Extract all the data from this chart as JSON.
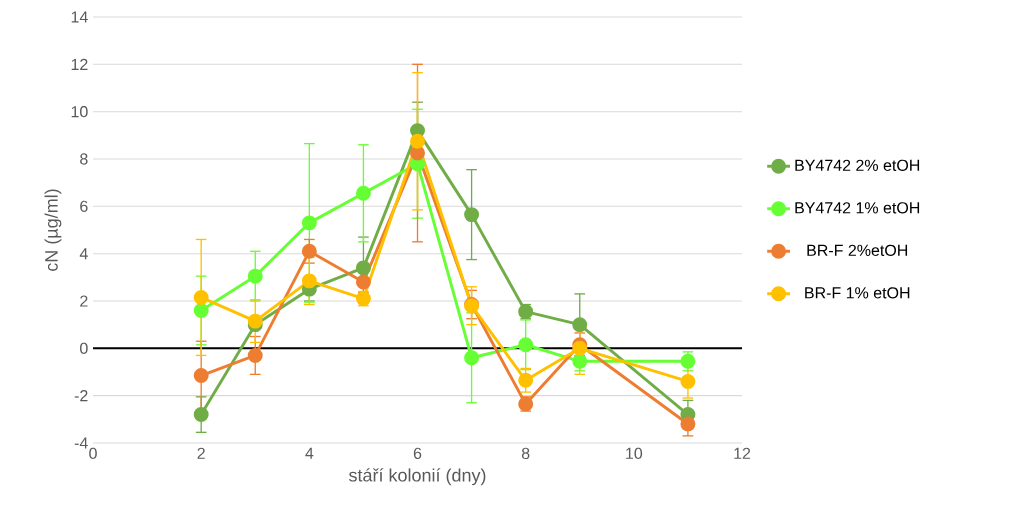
{
  "chart_data": {
    "type": "line",
    "xlabel": "stáří kolonií (dny)",
    "ylabel": "cN (µg/ml)",
    "x": [
      2,
      3,
      4,
      5,
      6,
      7,
      8,
      9,
      11
    ],
    "series": [
      {
        "name": "BY4742 2% etOH",
        "color": "#70ad47",
        "values": [
          -2.8,
          1.0,
          2.5,
          3.4,
          9.2,
          5.65,
          1.55,
          1.0,
          -2.8
        ],
        "errors": [
          0.75,
          null,
          0.5,
          1.3,
          1.2,
          1.9,
          0.3,
          1.3,
          0.6
        ]
      },
      {
        "name": "BY4742 1% etOH",
        "color": "#66ff33",
        "values": [
          1.6,
          3.05,
          5.3,
          6.55,
          7.8,
          -0.4,
          0.15,
          -0.55,
          -0.55
        ],
        "errors": [
          1.45,
          1.05,
          3.35,
          2.05,
          2.3,
          1.9,
          1.05,
          0.4,
          0.4
        ]
      },
      {
        "name": "BR-F 2%etOH",
        "color": "#ed7d31",
        "values": [
          -1.15,
          -0.3,
          4.1,
          2.8,
          8.25,
          1.85,
          -2.35,
          0.15,
          -3.2
        ],
        "errors": [
          1.45,
          0.8,
          0.5,
          0.45,
          3.75,
          0.6,
          0.3,
          0.5,
          0.5
        ]
      },
      {
        "name": "BR-F 1% etOH",
        "color": "#ffc000",
        "values": [
          2.15,
          1.15,
          2.85,
          2.1,
          8.75,
          1.8,
          -1.35,
          0.0,
          -1.4
        ],
        "errors": [
          2.45,
          0.9,
          1.0,
          0.3,
          2.9,
          0.8,
          0.5,
          1.1,
          0.7
        ]
      }
    ],
    "xlim": [
      0,
      12
    ],
    "xticks": [
      0,
      2,
      4,
      6,
      8,
      10,
      12
    ],
    "ylim": [
      -4,
      14
    ],
    "yticks": [
      -4,
      -2,
      0,
      2,
      4,
      6,
      8,
      10,
      12,
      14
    ],
    "grid": "y",
    "legend": "right",
    "marker": "circle",
    "line_style": "solid",
    "ref_lines": [
      {
        "axis": "y",
        "value": 0,
        "color": "#000000"
      }
    ]
  }
}
